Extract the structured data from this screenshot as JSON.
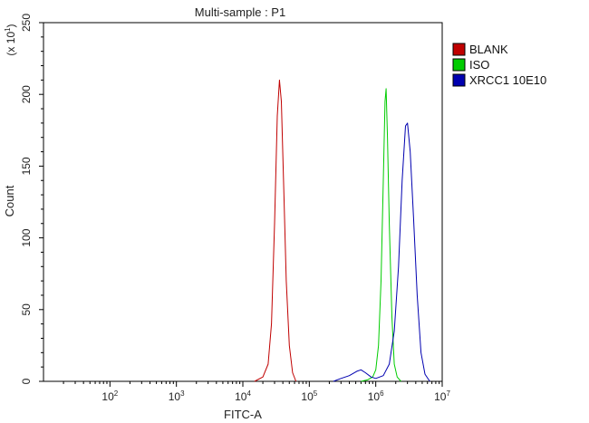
{
  "chart_data": {
    "type": "line",
    "title": "Multi-sample : P1",
    "xlabel": "FITC-A",
    "ylabel": "Count",
    "y_multiplier": "(x 10",
    "y_multiplier_exp": "1",
    "y_multiplier_close": ")",
    "x_scale": "log",
    "xlim": [
      10,
      10000000
    ],
    "ylim": [
      0,
      250
    ],
    "x_tick_base": "10",
    "x_ticks": [
      {
        "value": 100,
        "exp": "2"
      },
      {
        "value": 1000,
        "exp": "3"
      },
      {
        "value": 10000,
        "exp": "4"
      },
      {
        "value": 100000,
        "exp": "5"
      },
      {
        "value": 1000000,
        "exp": "6"
      },
      {
        "value": 10000000,
        "exp": "7"
      }
    ],
    "y_ticks": [
      "0",
      "50",
      "100",
      "150",
      "200",
      "250"
    ],
    "grid": false,
    "legend_position": "top-right",
    "series": [
      {
        "name": "BLANK",
        "color": "#c00000",
        "points": [
          [
            15000,
            0
          ],
          [
            20000,
            3
          ],
          [
            24000,
            12
          ],
          [
            27000,
            40
          ],
          [
            30000,
            110
          ],
          [
            33000,
            185
          ],
          [
            35500,
            210
          ],
          [
            38000,
            195
          ],
          [
            41000,
            140
          ],
          [
            45000,
            70
          ],
          [
            50000,
            25
          ],
          [
            56000,
            6
          ],
          [
            63000,
            0
          ]
        ]
      },
      {
        "name": "ISO",
        "color": "#00cc00",
        "points": [
          [
            600000,
            0
          ],
          [
            750000,
            1
          ],
          [
            900000,
            3
          ],
          [
            1000000,
            8
          ],
          [
            1100000,
            25
          ],
          [
            1200000,
            70
          ],
          [
            1300000,
            140
          ],
          [
            1380000,
            195
          ],
          [
            1430000,
            204
          ],
          [
            1500000,
            170
          ],
          [
            1600000,
            110
          ],
          [
            1750000,
            45
          ],
          [
            1900000,
            12
          ],
          [
            2100000,
            3
          ],
          [
            2400000,
            0
          ]
        ]
      },
      {
        "name": "XRCC1 10E10",
        "color": "#0000b0",
        "points": [
          [
            230000,
            0
          ],
          [
            300000,
            2
          ],
          [
            400000,
            4
          ],
          [
            520000,
            7
          ],
          [
            600000,
            8
          ],
          [
            700000,
            6
          ],
          [
            850000,
            3
          ],
          [
            1000000,
            2
          ],
          [
            1300000,
            4
          ],
          [
            1600000,
            12
          ],
          [
            1900000,
            35
          ],
          [
            2200000,
            80
          ],
          [
            2500000,
            140
          ],
          [
            2800000,
            178
          ],
          [
            3000000,
            180
          ],
          [
            3300000,
            160
          ],
          [
            3700000,
            115
          ],
          [
            4200000,
            60
          ],
          [
            4800000,
            20
          ],
          [
            5500000,
            5
          ],
          [
            6500000,
            0
          ]
        ]
      }
    ]
  }
}
